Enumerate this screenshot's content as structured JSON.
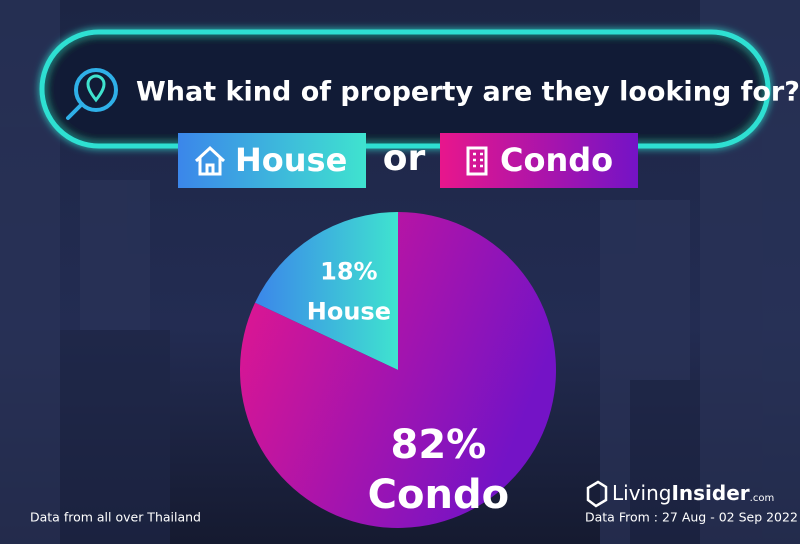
{
  "chart_data": {
    "type": "pie",
    "title": "What kind of property are they looking for?",
    "options": {
      "first": "House",
      "connector": "or",
      "second": "Condo"
    },
    "categories": [
      "House",
      "Condo"
    ],
    "values": [
      18,
      82
    ],
    "value_labels": [
      "18%",
      "82%"
    ],
    "colors": [
      [
        "#3b86ea",
        "#3fe3cf"
      ],
      [
        "#e8168c",
        "#7413c6"
      ]
    ]
  },
  "footer": {
    "note": "Data from all over Thailand",
    "brand_1": "Living",
    "brand_2": "Insider",
    "brand_domain": ".com",
    "source": "Data From : 27 Aug - 02 Sep 2022"
  }
}
